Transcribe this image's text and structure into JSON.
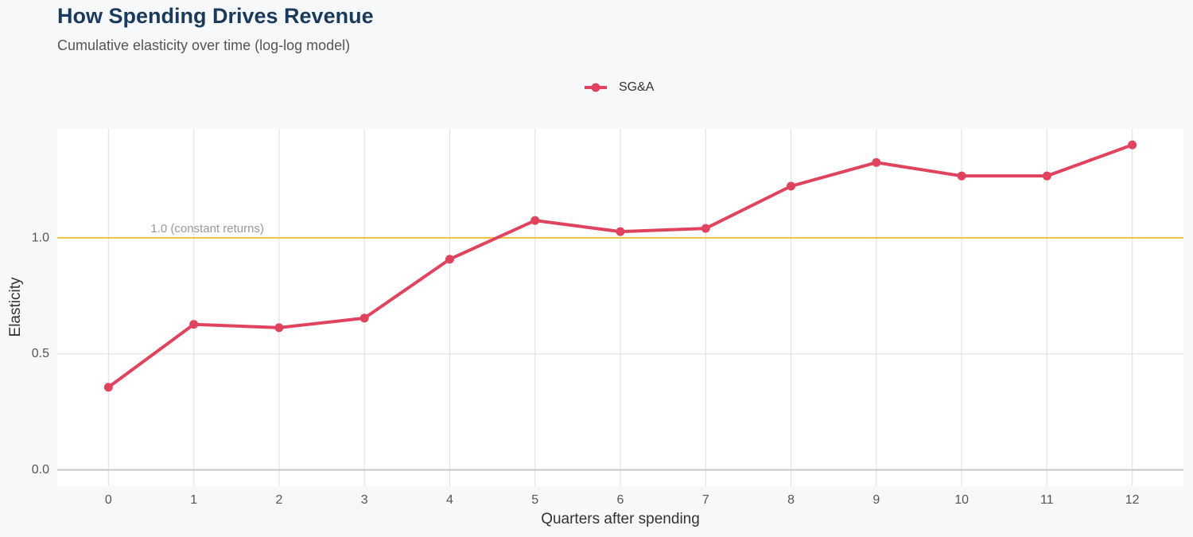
{
  "chart_data": {
    "type": "line",
    "title": "How Spending Drives Revenue",
    "subtitle": "Cumulative elasticity over time (log-log model)",
    "x_label": "Quarters after spending",
    "y_label": "Elasticity",
    "x": [
      0,
      1,
      2,
      3,
      4,
      5,
      6,
      7,
      8,
      9,
      10,
      11,
      12
    ],
    "series": [
      {
        "name": "SG&A",
        "color": "#e0435e",
        "values": [
          0.356,
          0.627,
          0.613,
          0.654,
          0.908,
          1.075,
          1.027,
          1.041,
          1.223,
          1.325,
          1.267,
          1.267,
          1.401
        ]
      }
    ],
    "xlim": [
      -0.6,
      12.6
    ],
    "xticks": [
      0,
      1,
      2,
      3,
      4,
      5,
      6,
      7,
      8,
      9,
      10,
      11,
      12
    ],
    "ylim": [
      -0.07,
      1.47
    ],
    "yticks": [
      {
        "value": 0,
        "label": "0.0"
      },
      {
        "value": 0.5,
        "label": "0.5"
      },
      {
        "value": 1,
        "label": "1.0"
      }
    ],
    "reference_line": {
      "value": 1,
      "label": "1.0 (constant returns)",
      "color": "#f5c542"
    },
    "grid": true,
    "legend": "top"
  }
}
